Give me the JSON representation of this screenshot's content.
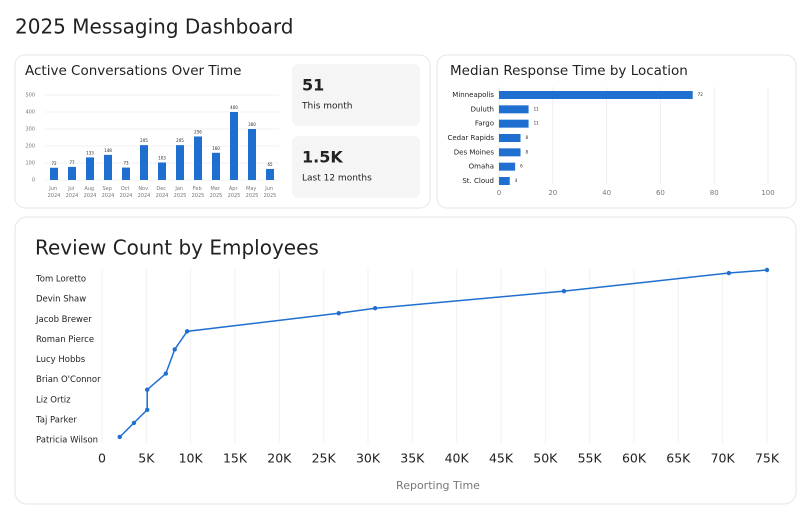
{
  "title": "2025 Messaging Dashboard",
  "kpis": [
    {
      "value": "51",
      "label": "This month"
    },
    {
      "value": "1.5K",
      "label": "Last 12 months"
    }
  ],
  "chart_data": [
    {
      "type": "bar",
      "title": "Active Conversations Over Time",
      "categories": [
        "Jun 2024",
        "Jul 2024",
        "Aug 2024",
        "Sep 2024",
        "Oct 2024",
        "Nov 2024",
        "Dec 2024",
        "Jan 2025",
        "Feb 2025",
        "Mar 2025",
        "Apr 2025",
        "May 2025",
        "Jun 2025"
      ],
      "values": [
        72,
        77,
        133,
        148,
        73,
        205,
        103,
        205,
        256,
        160,
        400,
        300,
        65
      ],
      "color": "#1f6fd1",
      "ylim": [
        0,
        500
      ],
      "yticks": [
        0,
        100,
        200,
        300,
        400,
        500
      ],
      "grid": true
    },
    {
      "type": "bar",
      "horizontal": true,
      "title": "Median Response Time by Location",
      "categories": [
        "Minneapolis",
        "Duluth",
        "Fargo",
        "Cedar Rapids",
        "Des Moines",
        "Omaha",
        "St. Cloud"
      ],
      "values": [
        72,
        11,
        11,
        8,
        8,
        6,
        4
      ],
      "color": "#1f6fd1",
      "xlim": [
        0,
        100
      ],
      "xticks": [
        0,
        20,
        40,
        60,
        80,
        100
      ],
      "grid": true
    },
    {
      "type": "line",
      "title": "Review Count by Employees",
      "xlabel": "Reporting Time",
      "x": [
        2000,
        3600,
        5100,
        5100,
        7200,
        8200,
        9600,
        26700,
        30800,
        52100,
        70700,
        75000
      ],
      "series": [
        {
          "color": "#1f6fd1",
          "values": [
            0.15,
            0.85,
            1.5,
            2.5,
            3.3,
            4.5,
            5.4,
            6.3,
            6.55,
            7.4,
            8.3,
            8.45
          ]
        }
      ],
      "xlim": [
        0,
        75000
      ],
      "xticks": [
        0,
        {
          "value": 5000,
          "label": "5K"
        },
        {
          "value": 10000,
          "label": "10K"
        },
        {
          "value": 15000,
          "label": "15K"
        },
        {
          "value": 20000,
          "label": "20K"
        },
        {
          "value": 25000,
          "label": "25K"
        },
        {
          "value": 30000,
          "label": "30K"
        },
        {
          "value": 35000,
          "label": "35K"
        },
        {
          "value": 40000,
          "label": "40K"
        },
        {
          "value": 45000,
          "label": "45K"
        },
        {
          "value": 50000,
          "label": "50K"
        },
        {
          "value": 55000,
          "label": "55K"
        },
        {
          "value": 60000,
          "label": "60K"
        },
        {
          "value": 65000,
          "label": "65K"
        },
        {
          "value": 70000,
          "label": "70K"
        },
        {
          "value": 75000,
          "label": "75K"
        }
      ],
      "ylim": [
        0,
        8.5
      ],
      "yticks": [
        {
          "value": 0,
          "label": "Patricia Wilson"
        },
        {
          "value": 1,
          "label": "Taj Parker"
        },
        {
          "value": 2,
          "label": "Liz Ortiz"
        },
        {
          "value": 3,
          "label": "Brian O'Connor"
        },
        {
          "value": 4,
          "label": "Lucy Hobbs"
        },
        {
          "value": 5,
          "label": "Roman Pierce"
        },
        {
          "value": 6,
          "label": "Jacob Brewer"
        },
        {
          "value": 7,
          "label": "Devin Shaw"
        },
        {
          "value": 8,
          "label": "Tom Loretto"
        }
      ],
      "grid": true
    }
  ]
}
